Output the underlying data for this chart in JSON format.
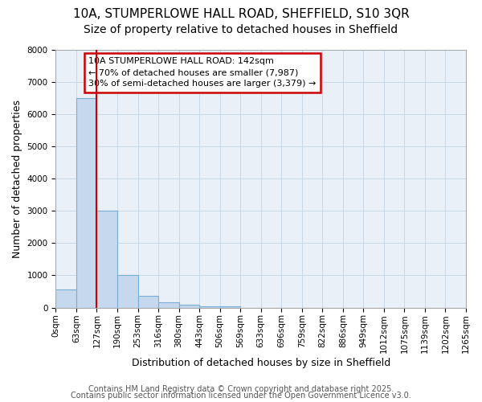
{
  "title_line1": "10A, STUMPERLOWE HALL ROAD, SHEFFIELD, S10 3QR",
  "title_line2": "Size of property relative to detached houses in Sheffield",
  "xlabel": "Distribution of detached houses by size in Sheffield",
  "ylabel": "Number of detached properties",
  "bar_values": [
    550,
    6500,
    3000,
    1000,
    375,
    175,
    100,
    50,
    50,
    0,
    0,
    0,
    0,
    0,
    0,
    0,
    0,
    0,
    0,
    0
  ],
  "bar_labels": [
    "0sqm",
    "63sqm",
    "127sqm",
    "190sqm",
    "253sqm",
    "316sqm",
    "380sqm",
    "443sqm",
    "506sqm",
    "569sqm",
    "633sqm",
    "696sqm",
    "759sqm",
    "822sqm",
    "886sqm",
    "949sqm",
    "1012sqm",
    "1075sqm",
    "1139sqm",
    "1202sqm",
    "1265sqm"
  ],
  "bar_color": "#c5d8ee",
  "bar_edge_color": "#7aafd4",
  "red_line_x": 2,
  "annotation_text": "10A STUMPERLOWE HALL ROAD: 142sqm\n← 70% of detached houses are smaller (7,987)\n30% of semi-detached houses are larger (3,379) →",
  "annotation_box_color": "#cc0000",
  "ylim": [
    0,
    8000
  ],
  "yticks": [
    0,
    1000,
    2000,
    3000,
    4000,
    5000,
    6000,
    7000,
    8000
  ],
  "grid_color": "#c8d8e8",
  "background_color": "#eaf0f8",
  "footer_line1": "Contains HM Land Registry data © Crown copyright and database right 2025.",
  "footer_line2": "Contains public sector information licensed under the Open Government Licence v3.0.",
  "title_fontsize": 11,
  "subtitle_fontsize": 10,
  "axis_label_fontsize": 9,
  "tick_fontsize": 7.5,
  "annotation_fontsize": 8,
  "footer_fontsize": 7
}
